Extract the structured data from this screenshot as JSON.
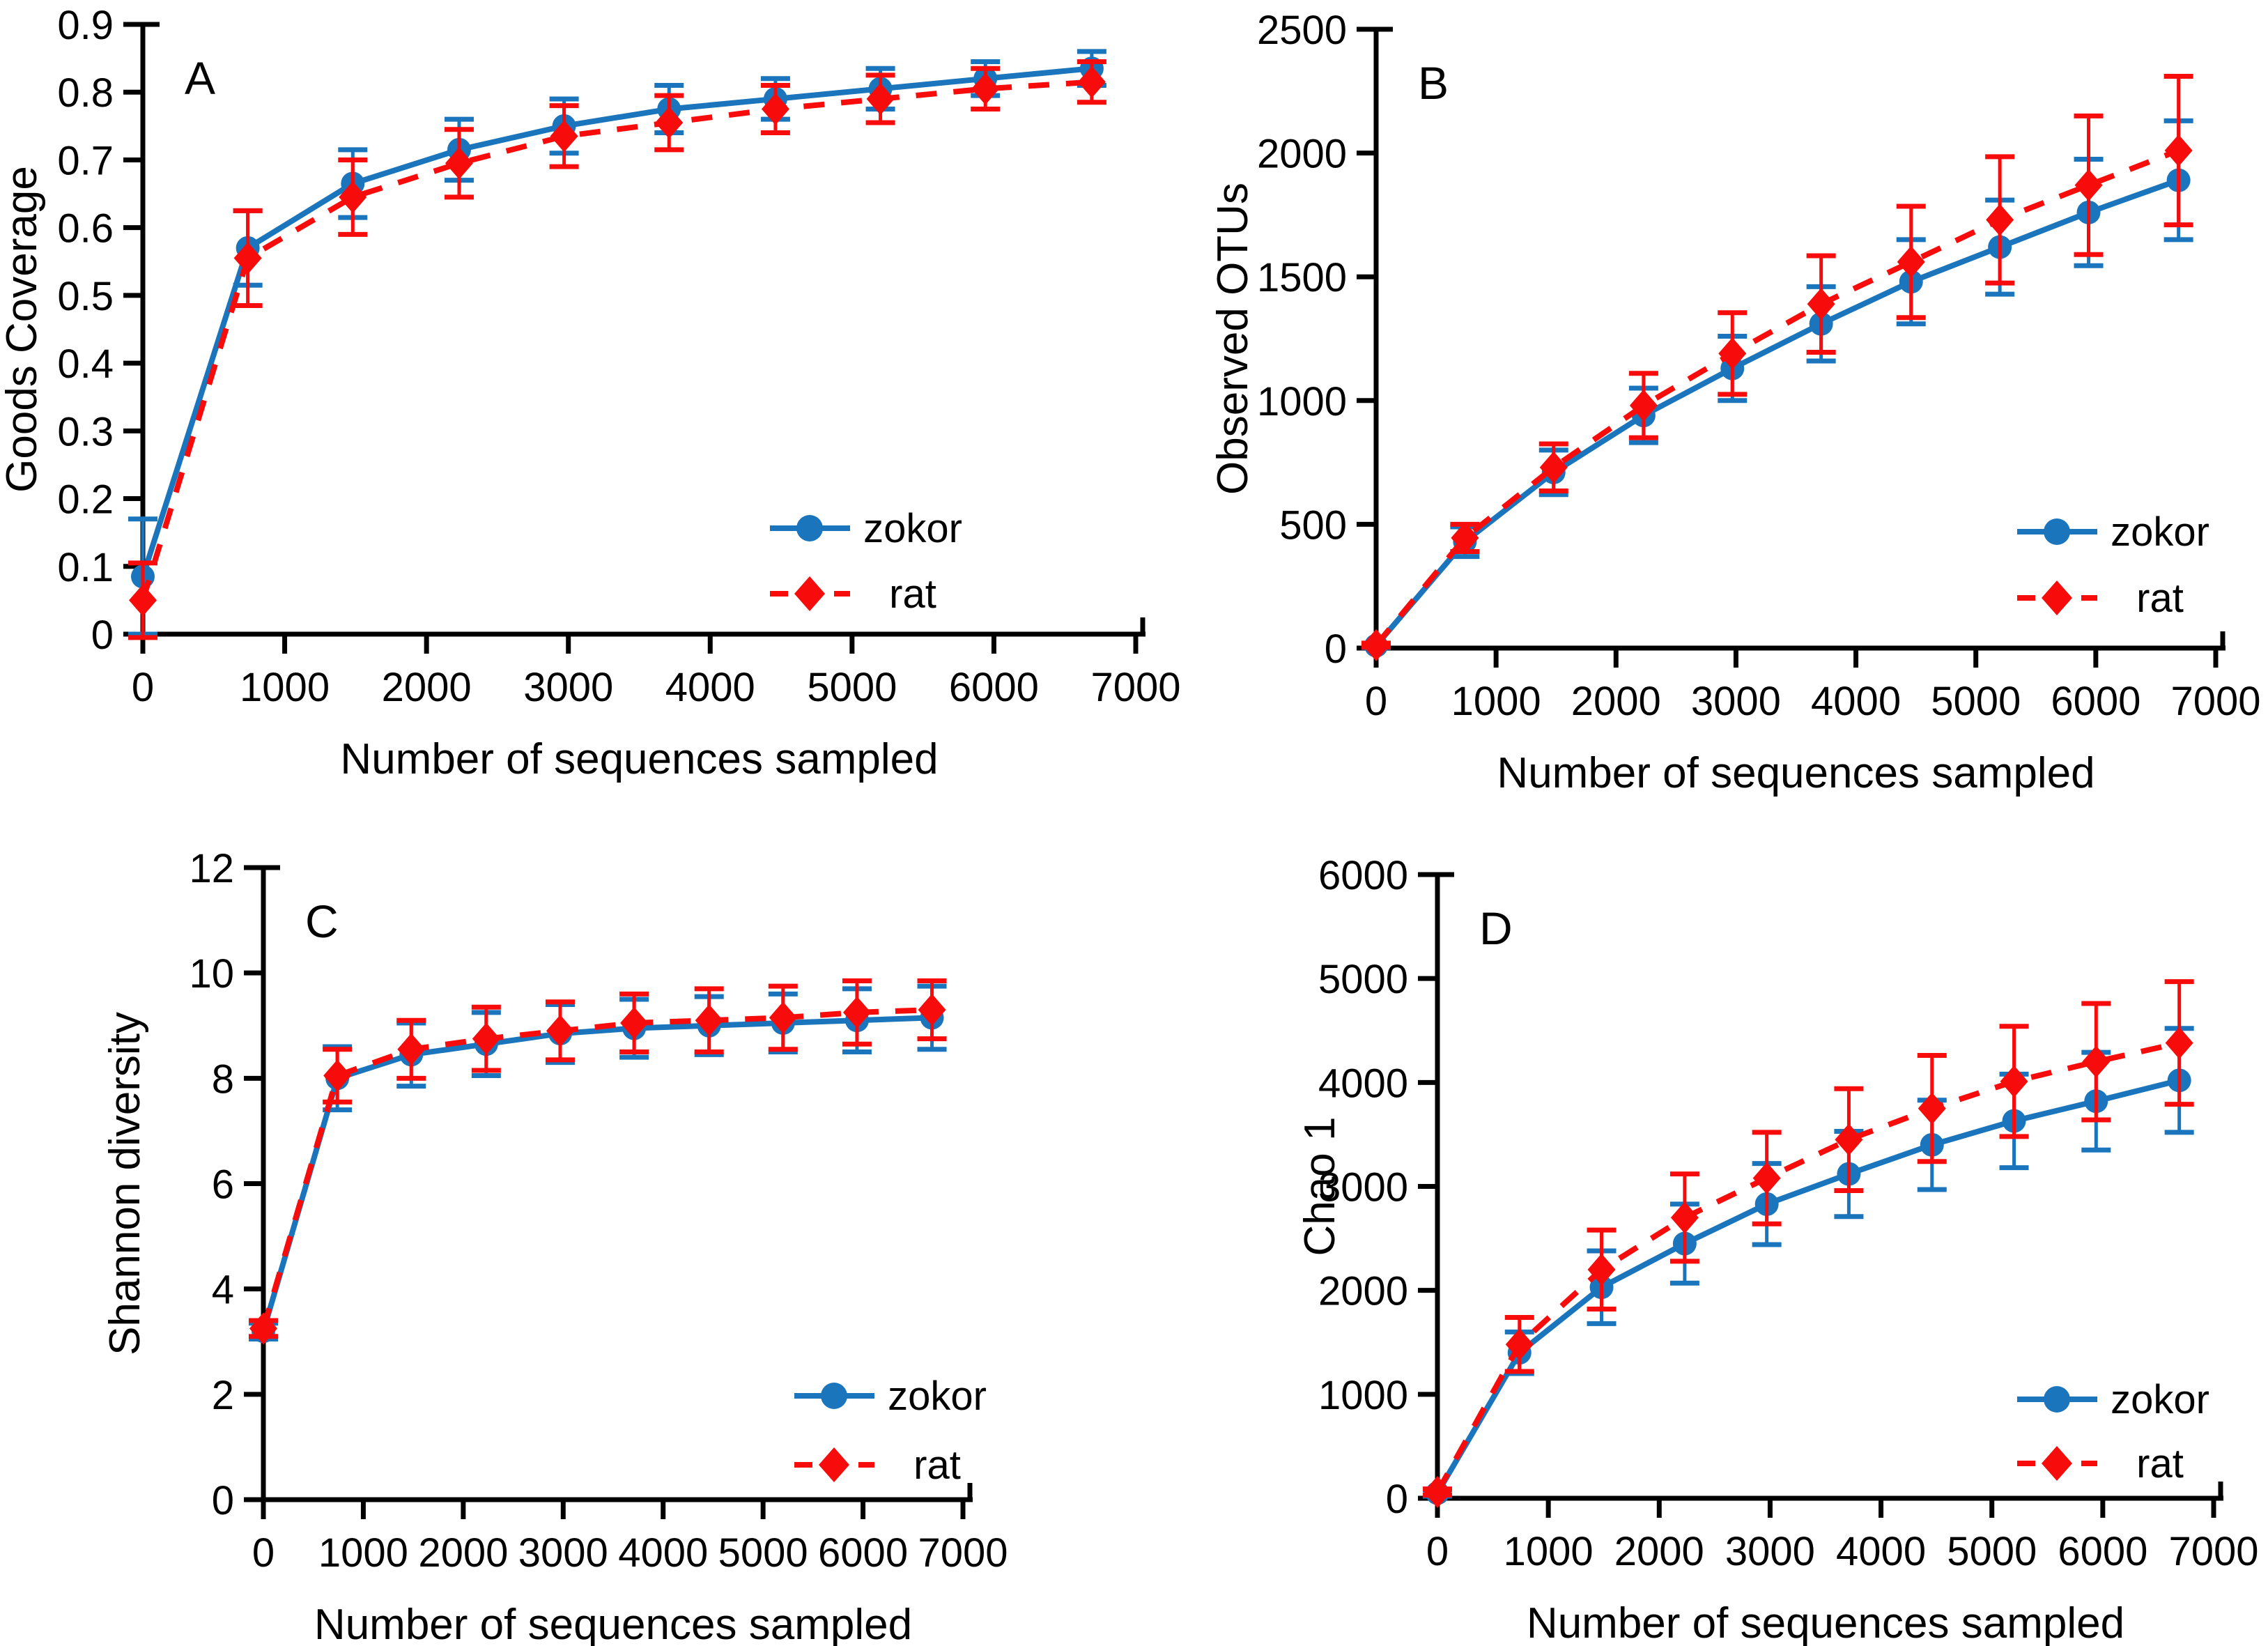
{
  "figure": {
    "description": "Four-panel rarefaction curve figure comparing zokor and rat gut microbiota alpha-diversity metrics",
    "panel_letters": [
      "A",
      "B",
      "C",
      "D"
    ],
    "shared_x_label": "Number of sequences sampled",
    "legend_labels": [
      "zokor",
      "rat"
    ],
    "colors": {
      "zokor": "#1b75bc",
      "rat": "#f80b0b",
      "axis": "#000000"
    }
  },
  "chart_data": [
    {
      "type": "line",
      "panel_label": "A",
      "xlabel": "Number of sequences sampled",
      "ylabel": "Goods Coverage",
      "xlim": [
        0,
        7000
      ],
      "x_ticks": [
        0,
        1000,
        2000,
        3000,
        4000,
        5000,
        6000,
        7000
      ],
      "ylim": [
        0,
        0.9
      ],
      "y_ticks": [
        0,
        0.1,
        0.2,
        0.3,
        0.4,
        0.5,
        0.6,
        0.7,
        0.8,
        0.9
      ],
      "y_decimals": 1,
      "grid": false,
      "legend_position": "inside-lower-right",
      "x": [
        0,
        740,
        1480,
        2230,
        2970,
        3710,
        4460,
        5200,
        5940,
        6690
      ],
      "series": [
        {
          "name": "zokor",
          "color": "#1b75bc",
          "line": "solid",
          "marker": "circle",
          "values": [
            0.085,
            0.57,
            0.665,
            0.715,
            0.75,
            0.775,
            0.79,
            0.805,
            0.82,
            0.835
          ],
          "errors": [
            0.085,
            0.055,
            0.05,
            0.045,
            0.04,
            0.035,
            0.03,
            0.03,
            0.025,
            0.025
          ]
        },
        {
          "name": "rat",
          "color": "#f80b0b",
          "line": "dashed",
          "marker": "diamond",
          "values": [
            0.05,
            0.555,
            0.645,
            0.695,
            0.735,
            0.755,
            0.775,
            0.79,
            0.805,
            0.815
          ],
          "errors": [
            0.055,
            0.07,
            0.055,
            0.05,
            0.045,
            0.04,
            0.035,
            0.035,
            0.03,
            0.03
          ]
        }
      ]
    },
    {
      "type": "line",
      "panel_label": "B",
      "xlabel": "Number of sequences sampled",
      "ylabel": "Observed OTUs",
      "xlim": [
        0,
        7000
      ],
      "x_ticks": [
        0,
        1000,
        2000,
        3000,
        4000,
        5000,
        6000,
        7000
      ],
      "ylim": [
        0,
        2500
      ],
      "y_ticks": [
        0,
        500,
        1000,
        1500,
        2000,
        2500
      ],
      "y_decimals": 0,
      "grid": false,
      "legend_position": "inside-lower-right",
      "x": [
        0,
        740,
        1480,
        2230,
        2970,
        3710,
        4460,
        5200,
        5940,
        6690
      ],
      "series": [
        {
          "name": "zokor",
          "color": "#1b75bc",
          "line": "solid",
          "marker": "circle",
          "values": [
            10,
            430,
            710,
            940,
            1130,
            1310,
            1480,
            1620,
            1760,
            1890
          ],
          "errors": [
            8,
            60,
            90,
            110,
            130,
            150,
            170,
            190,
            215,
            240
          ]
        },
        {
          "name": "rat",
          "color": "#f80b0b",
          "line": "dashed",
          "marker": "diamond",
          "values": [
            12,
            445,
            730,
            980,
            1190,
            1390,
            1560,
            1730,
            1870,
            2010
          ],
          "errors": [
            8,
            55,
            95,
            130,
            165,
            195,
            225,
            255,
            280,
            300
          ]
        }
      ]
    },
    {
      "type": "line",
      "panel_label": "C",
      "xlabel": "Number of sequences sampled",
      "ylabel": "Shannon diversity",
      "xlim": [
        0,
        7000
      ],
      "x_ticks": [
        0,
        1000,
        2000,
        3000,
        4000,
        5000,
        6000,
        7000
      ],
      "ylim": [
        0,
        12
      ],
      "y_ticks": [
        0,
        2,
        4,
        6,
        8,
        10,
        12
      ],
      "y_decimals": 0,
      "grid": false,
      "legend_position": "inside-lower-right",
      "x": [
        0,
        740,
        1480,
        2230,
        2970,
        3710,
        4460,
        5200,
        5940,
        6690
      ],
      "series": [
        {
          "name": "zokor",
          "color": "#1b75bc",
          "line": "solid",
          "marker": "circle",
          "values": [
            3.2,
            8.0,
            8.45,
            8.65,
            8.85,
            8.95,
            9.0,
            9.05,
            9.1,
            9.15
          ],
          "errors": [
            0.15,
            0.6,
            0.6,
            0.6,
            0.55,
            0.55,
            0.55,
            0.55,
            0.6,
            0.6
          ]
        },
        {
          "name": "rat",
          "color": "#f80b0b",
          "line": "dashed",
          "marker": "diamond",
          "values": [
            3.25,
            8.05,
            8.55,
            8.75,
            8.9,
            9.05,
            9.1,
            9.15,
            9.25,
            9.3
          ],
          "errors": [
            0.15,
            0.5,
            0.55,
            0.6,
            0.55,
            0.55,
            0.6,
            0.6,
            0.6,
            0.55
          ]
        }
      ]
    },
    {
      "type": "line",
      "panel_label": "D",
      "xlabel": "Number of sequences sampled",
      "ylabel": "Chao 1",
      "xlim": [
        0,
        7000
      ],
      "x_ticks": [
        0,
        1000,
        2000,
        3000,
        4000,
        5000,
        6000,
        7000
      ],
      "ylim": [
        0,
        6000
      ],
      "y_ticks": [
        0,
        1000,
        2000,
        3000,
        4000,
        5000,
        6000
      ],
      "y_decimals": 0,
      "grid": false,
      "legend_position": "inside-lower-right",
      "x": [
        0,
        740,
        1480,
        2230,
        2970,
        3710,
        4460,
        5200,
        5940,
        6690
      ],
      "series": [
        {
          "name": "zokor",
          "color": "#1b75bc",
          "line": "solid",
          "marker": "circle",
          "values": [
            50,
            1400,
            2030,
            2450,
            2830,
            3120,
            3400,
            3630,
            3820,
            4020
          ],
          "errors": [
            30,
            200,
            350,
            380,
            390,
            410,
            430,
            450,
            470,
            500
          ]
        },
        {
          "name": "rat",
          "color": "#f80b0b",
          "line": "dashed",
          "marker": "diamond",
          "values": [
            60,
            1480,
            2200,
            2700,
            3080,
            3450,
            3750,
            4010,
            4200,
            4380
          ],
          "errors": [
            30,
            260,
            380,
            420,
            440,
            490,
            510,
            530,
            560,
            590
          ]
        }
      ]
    }
  ]
}
